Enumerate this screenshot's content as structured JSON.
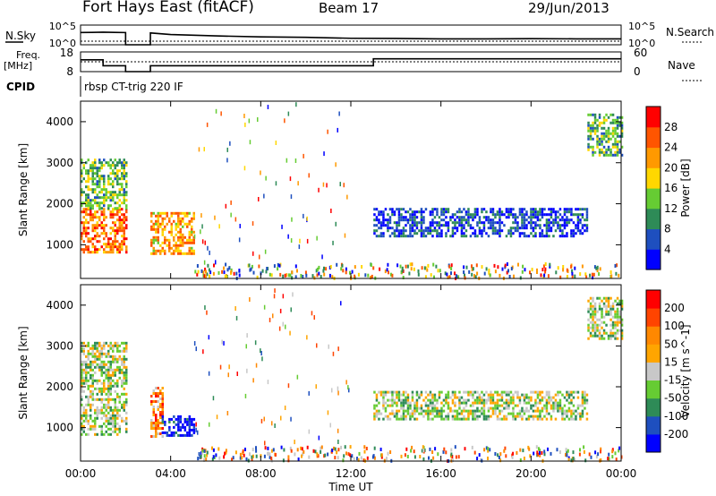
{
  "header": {
    "radar": "Fort Hays East (fitACF)",
    "beam": "Beam 17",
    "date": "29/Jun/2013"
  },
  "side_labels": {
    "nsky": "N.Sky",
    "nsearch": "N.Search",
    "freq": "Freq.",
    "freq_unit": "[MHz]",
    "nave": "Nave",
    "cpid": "CPID",
    "cpid_value": "rbsp CT-trig 220 IF"
  },
  "chart_data": [
    {
      "type": "line",
      "panel": "noise",
      "left_ticks": [
        "10^5",
        "10^0"
      ],
      "right_ticks": [
        "10^5",
        "10^0"
      ],
      "series": [
        {
          "name": "N.Sky",
          "x": [
            0.0,
            0.5,
            1.0,
            1.5,
            2.0,
            2.001,
            3.1,
            3.101,
            4,
            6,
            8,
            10,
            12,
            14,
            16,
            18,
            20,
            22,
            24
          ],
          "y": [
            0.62,
            0.63,
            0.64,
            0.63,
            0.62,
            0.0,
            0.0,
            0.6,
            0.52,
            0.45,
            0.4,
            0.38,
            0.33,
            0.32,
            0.3,
            0.3,
            0.31,
            0.3,
            0.3
          ]
        },
        {
          "name": "N.Search",
          "x": [
            0,
            24
          ],
          "y": [
            0.18,
            0.18
          ]
        }
      ]
    },
    {
      "type": "line",
      "panel": "frequency",
      "left_ticks": [
        "18",
        "8"
      ],
      "right_ticks": [
        "60",
        "0"
      ],
      "series": [
        {
          "name": "Freq.",
          "x": [
            0.0,
            0.2,
            0.2,
            1.0,
            1.0,
            2.0,
            2.0,
            3.1,
            3.1,
            13.0,
            13.0,
            24.0
          ],
          "y": [
            14.0,
            14.0,
            14.0,
            14.0,
            11.0,
            11.0,
            8.0,
            8.0,
            11.0,
            11.0,
            14.5,
            14.5
          ]
        },
        {
          "name": "Nave",
          "x": [
            0,
            24
          ],
          "y": [
            30,
            30
          ]
        }
      ]
    },
    {
      "type": "heatmap",
      "panel": "power",
      "ylabel": "Slant Range [km]",
      "ylim": [
        180,
        4500
      ],
      "xlim": [
        0,
        24
      ],
      "yticks": [
        1000,
        2000,
        3000,
        4000
      ],
      "colorbar_label": "Power [dB]",
      "colorbar_ticks": [
        4,
        8,
        12,
        16,
        20,
        24,
        28
      ],
      "colorbar_colors": [
        "#0000ff",
        "#1e4fbf",
        "#2e8b57",
        "#66cc33",
        "#ffd700",
        "#ff9900",
        "#ff5500",
        "#ff0000"
      ],
      "regions": [
        {
          "t0": 0.0,
          "t1": 2.0,
          "r0": 800,
          "r1": 1900,
          "level": 0.8
        },
        {
          "t0": 0.0,
          "t1": 2.0,
          "r0": 1900,
          "r1": 3100,
          "level": 0.4
        },
        {
          "t0": 3.1,
          "t1": 5.0,
          "r0": 800,
          "r1": 1800,
          "level": 0.7
        },
        {
          "t0": 13.0,
          "t1": 22.5,
          "r0": 1200,
          "r1": 1900,
          "level": 0.1
        },
        {
          "t0": 22.5,
          "t1": 24.0,
          "r0": 3200,
          "r1": 4200,
          "level": 0.35
        }
      ]
    },
    {
      "type": "heatmap",
      "panel": "velocity",
      "ylabel": "Slant Range [km]",
      "ylim": [
        180,
        4500
      ],
      "xlim": [
        0,
        24
      ],
      "yticks": [
        1000,
        2000,
        3000,
        4000
      ],
      "xticks": [
        "00:00",
        "04:00",
        "08:00",
        "12:00",
        "16:00",
        "20:00",
        "00:00"
      ],
      "xlabel": "Time UT",
      "colorbar_label": "Velocity [m s^-1]",
      "colorbar_ticks": [
        200,
        100,
        50,
        15,
        -15,
        -50,
        -100,
        -200
      ],
      "colorbar_colors": [
        "#0000ff",
        "#1e4fbf",
        "#2e8b57",
        "#66cc33",
        "#c8c8c8",
        "#ffa500",
        "#ff8800",
        "#ff4400",
        "#ff0000"
      ],
      "regions": [
        {
          "t0": 0.0,
          "t1": 2.0,
          "r0": 800,
          "r1": 3100,
          "level": 0.45
        },
        {
          "t0": 3.1,
          "t1": 3.6,
          "r0": 800,
          "r1": 2000,
          "level": 0.75
        },
        {
          "t0": 3.6,
          "t1": 5.0,
          "r0": 800,
          "r1": 1300,
          "level": 0.0
        },
        {
          "t0": 13.0,
          "t1": 22.5,
          "r0": 1200,
          "r1": 1900,
          "level": 0.45
        },
        {
          "t0": 22.5,
          "t1": 24.0,
          "r0": 3200,
          "r1": 4200,
          "level": 0.45
        }
      ]
    }
  ]
}
